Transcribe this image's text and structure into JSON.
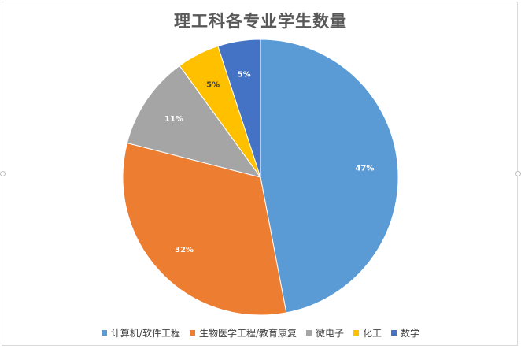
{
  "chart_data": {
    "type": "pie",
    "title": "理工科各专业学生数量",
    "categories": [
      "计算机/软件工程",
      "生物医学工程/教育康复",
      "微电子",
      "化工",
      "数学"
    ],
    "values": [
      47,
      32,
      11,
      5,
      5
    ],
    "labels": [
      "47%",
      "32%",
      "11%",
      "5%",
      "5%"
    ],
    "colors": [
      "#5b9bd5",
      "#ed7d31",
      "#a5a5a5",
      "#ffc000",
      "#4472c4"
    ],
    "label_colors": [
      "#ffffff",
      "#ffffff",
      "#ffffff",
      "#404040",
      "#ffffff"
    ],
    "start_angle_deg": 0,
    "direction": "clockwise",
    "legend_position": "bottom"
  }
}
